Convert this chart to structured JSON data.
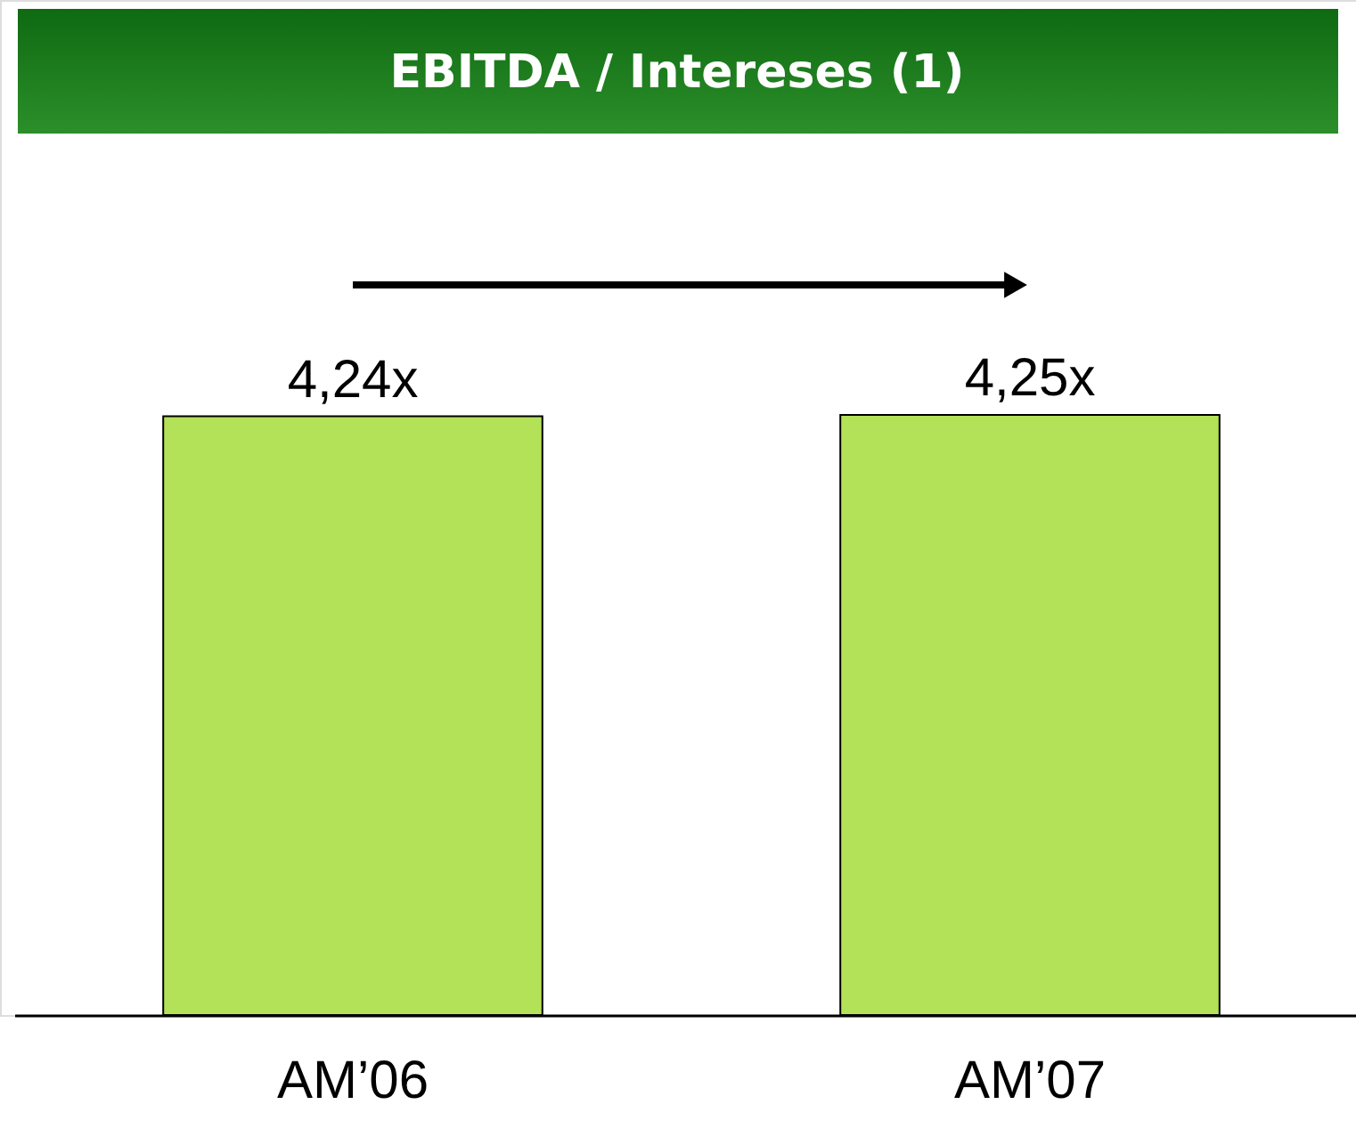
{
  "chart_data": {
    "type": "bar",
    "title": "EBITDA / Intereses (1)",
    "categories": [
      "AM’06",
      "AM’07"
    ],
    "values": [
      4.24,
      4.25
    ],
    "value_labels": [
      "4,24x",
      "4,25x"
    ],
    "color": "#b3e157"
  }
}
